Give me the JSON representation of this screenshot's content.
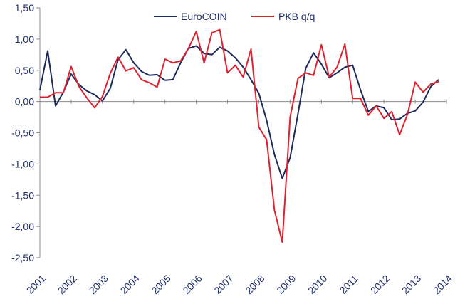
{
  "chart_data": {
    "type": "line",
    "title": "",
    "xlabel": "",
    "ylabel": "",
    "ylim": [
      -2.5,
      1.5
    ],
    "y_ticks": [
      "1,50",
      "1,00",
      "0,50",
      "0,00",
      "-0,50",
      "-1,00",
      "-1,50",
      "-2,00",
      "-2,50"
    ],
    "y_tick_values": [
      1.5,
      1.0,
      0.5,
      0.0,
      -0.5,
      -1.0,
      -1.5,
      -2.0,
      -2.5
    ],
    "x_ticks": [
      "2001",
      "2002",
      "2003",
      "2004",
      "2005",
      "2006",
      "2007",
      "2008",
      "2009",
      "2010",
      "2011",
      "2012",
      "2013",
      "2014"
    ],
    "grid": false,
    "legend_position": "top",
    "series": [
      {
        "name": "EuroCOIN",
        "color": "#1c2a5e",
        "x": [
          2001.0,
          2001.25,
          2001.5,
          2001.75,
          2002.0,
          2002.25,
          2002.5,
          2002.75,
          2003.0,
          2003.25,
          2003.5,
          2003.75,
          2004.0,
          2004.25,
          2004.5,
          2004.75,
          2005.0,
          2005.25,
          2005.5,
          2005.75,
          2006.0,
          2006.25,
          2006.5,
          2006.75,
          2007.0,
          2007.25,
          2007.5,
          2007.75,
          2008.0,
          2008.25,
          2008.5,
          2008.75,
          2009.0,
          2009.25,
          2009.5,
          2009.75,
          2010.0,
          2010.25,
          2010.5,
          2010.75,
          2011.0,
          2011.25,
          2011.5,
          2011.75,
          2012.0,
          2012.25,
          2012.5,
          2012.75,
          2013.0,
          2013.25,
          2013.5,
          2013.75
        ],
        "values": [
          0.18,
          0.81,
          -0.07,
          0.15,
          0.44,
          0.27,
          0.17,
          0.11,
          0.01,
          0.21,
          0.67,
          0.83,
          0.62,
          0.48,
          0.42,
          0.43,
          0.34,
          0.35,
          0.62,
          0.85,
          0.89,
          0.77,
          0.75,
          0.87,
          0.81,
          0.7,
          0.55,
          0.35,
          0.13,
          -0.3,
          -0.85,
          -1.23,
          -0.9,
          -0.2,
          0.53,
          0.78,
          0.6,
          0.38,
          0.46,
          0.55,
          0.58,
          0.19,
          -0.16,
          -0.07,
          -0.1,
          -0.29,
          -0.28,
          -0.19,
          -0.15,
          -0.01,
          0.24,
          0.35
        ]
      },
      {
        "name": "PKB q/q",
        "color": "#e0202f",
        "x": [
          2001.0,
          2001.25,
          2001.5,
          2001.75,
          2002.0,
          2002.25,
          2002.5,
          2002.75,
          2003.0,
          2003.25,
          2003.5,
          2003.75,
          2004.0,
          2004.25,
          2004.5,
          2004.75,
          2005.0,
          2005.25,
          2005.5,
          2005.75,
          2006.0,
          2006.25,
          2006.5,
          2006.75,
          2007.0,
          2007.25,
          2007.5,
          2007.75,
          2008.0,
          2008.25,
          2008.5,
          2008.75,
          2009.0,
          2009.25,
          2009.5,
          2009.75,
          2010.0,
          2010.25,
          2010.5,
          2010.75,
          2011.0,
          2011.25,
          2011.5,
          2011.75,
          2012.0,
          2012.25,
          2012.5,
          2012.75,
          2013.0,
          2013.25,
          2013.5,
          2013.75
        ],
        "values": [
          0.07,
          0.07,
          0.14,
          0.14,
          0.56,
          0.24,
          0.06,
          -0.1,
          0.08,
          0.45,
          0.71,
          0.49,
          0.54,
          0.35,
          0.3,
          0.23,
          0.68,
          0.62,
          0.65,
          0.85,
          1.12,
          0.62,
          1.1,
          1.15,
          0.46,
          0.58,
          0.39,
          0.84,
          -0.41,
          -0.61,
          -1.74,
          -2.25,
          -0.25,
          0.37,
          0.46,
          0.42,
          0.91,
          0.39,
          0.55,
          0.92,
          0.05,
          0.05,
          -0.22,
          -0.07,
          -0.27,
          -0.16,
          -0.53,
          -0.21,
          0.31,
          0.15,
          0.28,
          0.32
        ]
      }
    ]
  }
}
